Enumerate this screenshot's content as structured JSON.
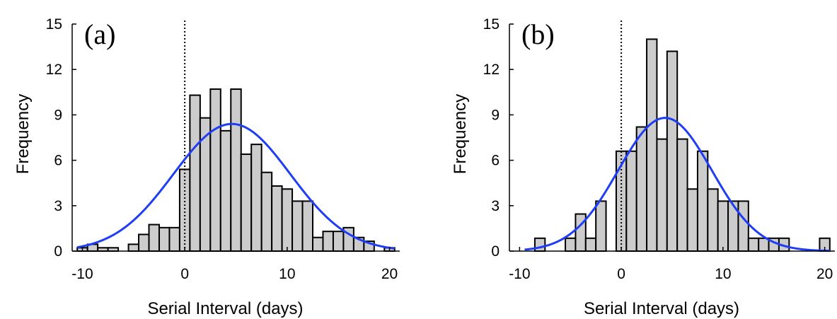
{
  "chart_data": [
    {
      "type": "bar",
      "panel_label": "(a)",
      "xlabel": "Serial Interval (days)",
      "ylabel": "Frequency",
      "xlim": [
        -11,
        21
      ],
      "ylim": [
        0,
        15
      ],
      "xticks": [
        -10,
        0,
        10,
        20
      ],
      "yticks": [
        0,
        3,
        6,
        9,
        12,
        15
      ],
      "bin_width": 1,
      "bins": [
        {
          "x0": -10.5,
          "v": 0.22
        },
        {
          "x0": -9.5,
          "v": 0.45
        },
        {
          "x0": -8.5,
          "v": 0.22
        },
        {
          "x0": -7.5,
          "v": 0.22
        },
        {
          "x0": -5.5,
          "v": 0.45
        },
        {
          "x0": -4.5,
          "v": 1.1
        },
        {
          "x0": -3.5,
          "v": 1.75
        },
        {
          "x0": -2.5,
          "v": 1.55
        },
        {
          "x0": -1.5,
          "v": 1.55
        },
        {
          "x0": -0.5,
          "v": 5.4
        },
        {
          "x0": 0.5,
          "v": 10.3
        },
        {
          "x0": 1.5,
          "v": 8.8
        },
        {
          "x0": 2.5,
          "v": 10.7
        },
        {
          "x0": 3.5,
          "v": 7.95
        },
        {
          "x0": 4.5,
          "v": 10.7
        },
        {
          "x0": 5.5,
          "v": 6.4
        },
        {
          "x0": 6.5,
          "v": 7.05
        },
        {
          "x0": 7.5,
          "v": 5.2
        },
        {
          "x0": 8.5,
          "v": 4.3
        },
        {
          "x0": 9.5,
          "v": 4.1
        },
        {
          "x0": 10.5,
          "v": 3.3
        },
        {
          "x0": 11.5,
          "v": 3.3
        },
        {
          "x0": 12.5,
          "v": 0.9
        },
        {
          "x0": 13.5,
          "v": 1.3
        },
        {
          "x0": 14.5,
          "v": 1.3
        },
        {
          "x0": 15.5,
          "v": 1.55
        },
        {
          "x0": 16.5,
          "v": 0.9
        },
        {
          "x0": 17.5,
          "v": 0.65
        },
        {
          "x0": 19.5,
          "v": 0.22
        }
      ],
      "fit": {
        "type": "normal",
        "mean": 4.6,
        "sd": 5.7,
        "peak": 8.4,
        "x_range": [
          -10.5,
          20.5
        ],
        "color": "#1f3df5"
      },
      "reference_line_x": 0,
      "bar_fill": "#cccccc",
      "grid": false
    },
    {
      "type": "bar",
      "panel_label": "(b)",
      "xlabel": "Serial Interval (days)",
      "ylabel": "Frequency",
      "xlim": [
        -11,
        21
      ],
      "ylim": [
        0,
        15
      ],
      "xticks": [
        -10,
        0,
        10,
        20
      ],
      "yticks": [
        0,
        3,
        6,
        9,
        12,
        15
      ],
      "bin_width": 1,
      "bins": [
        {
          "x0": -8.5,
          "v": 0.85
        },
        {
          "x0": -5.5,
          "v": 0.85
        },
        {
          "x0": -4.5,
          "v": 2.45
        },
        {
          "x0": -3.5,
          "v": 0.85
        },
        {
          "x0": -2.5,
          "v": 3.3
        },
        {
          "x0": -0.5,
          "v": 6.6
        },
        {
          "x0": 0.5,
          "v": 6.6
        },
        {
          "x0": 1.5,
          "v": 8.2
        },
        {
          "x0": 2.5,
          "v": 14.0
        },
        {
          "x0": 3.5,
          "v": 7.4
        },
        {
          "x0": 4.5,
          "v": 13.2
        },
        {
          "x0": 5.5,
          "v": 7.4
        },
        {
          "x0": 6.5,
          "v": 4.1
        },
        {
          "x0": 7.5,
          "v": 6.6
        },
        {
          "x0": 8.5,
          "v": 4.1
        },
        {
          "x0": 9.5,
          "v": 3.3
        },
        {
          "x0": 10.5,
          "v": 3.3
        },
        {
          "x0": 11.5,
          "v": 3.3
        },
        {
          "x0": 12.5,
          "v": 0.85
        },
        {
          "x0": 13.5,
          "v": 0.85
        },
        {
          "x0": 14.5,
          "v": 0.85
        },
        {
          "x0": 15.5,
          "v": 0.85
        },
        {
          "x0": 19.5,
          "v": 0.85
        }
      ],
      "fit": {
        "type": "normal",
        "mean": 4.3,
        "sd": 4.6,
        "peak": 8.8,
        "x_range": [
          -9.5,
          20.5
        ],
        "color": "#1f3df5"
      },
      "reference_line_x": 0,
      "bar_fill": "#cccccc",
      "grid": false
    }
  ]
}
